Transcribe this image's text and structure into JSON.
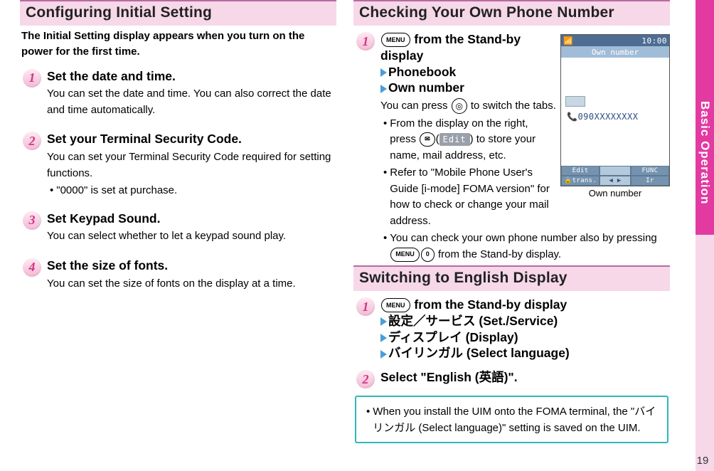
{
  "left": {
    "header": "Configuring Initial Setting",
    "intro": "The Initial Setting display appears when you turn on the power for the first time.",
    "steps": [
      {
        "num": "1",
        "title": "Set the date and time.",
        "text": "You can set the date and time. You can also correct the date and time automatically."
      },
      {
        "num": "2",
        "title": "Set your Terminal Security Code.",
        "text": "You can set your Terminal Security Code required for setting functions.",
        "bullet": "\"0000\" is set at purchase."
      },
      {
        "num": "3",
        "title": "Set Keypad Sound.",
        "text": "You can select whether to let a keypad sound play."
      },
      {
        "num": "4",
        "title": "Set the size of fonts.",
        "text": "You can set the size of fonts on the display at a time."
      }
    ]
  },
  "right": {
    "header1": "Checking Your Own Phone Number",
    "step1": {
      "num": "1",
      "menu": "MENU",
      "line1_a": " from the Stand-by display",
      "line1_b": "Phonebook",
      "line1_c": "Own number",
      "text1": "You can press ",
      "text1b": " to switch the tabs.",
      "bullet1_a": "From the display on the right, press ",
      "bullet1_mail": "✉",
      "bullet1_edit": "Edit",
      "bullet1_b": ") to store your name, mail address, etc.",
      "bullet2": "Refer to \"Mobile Phone User's Guide [i-mode] FOMA version\" for how to check or change your mail address.",
      "bullet3_a": "You can check your own phone number also by pressing ",
      "bullet3_key0": "0",
      "bullet3_b": " from the Stand-by display."
    },
    "phone": {
      "time": "10:00",
      "title": "Own number",
      "number": "📞090XXXXXXXX",
      "sk_edit": "Edit",
      "sk_func": "FUNC",
      "sk_trans": "🔒trans.",
      "sk_arrows": "◀  ▶",
      "sk_ir": "Ir",
      "caption": "Own number"
    },
    "header2": "Switching to English Display",
    "step2a": {
      "num": "1",
      "line1": " from the Stand-by display",
      "line2": "設定／サービス (Set./Service)",
      "line3": "ディスプレイ (Display)",
      "line4": "バイリンガル (Select language)"
    },
    "step2b": {
      "num": "2",
      "line": "Select \"English (英語)\"."
    },
    "note_bullet": "When you install the UIM onto the FOMA terminal, the \"バイリンガル (Select language)\" setting is saved on the UIM."
  },
  "sidebar_label": "Basic Operation",
  "page_number": "19",
  "colors": {
    "header_bg": "#f6d8e9",
    "header_border": "#b86aa2",
    "accent_pink": "#e33aa2",
    "arrow_blue": "#4a9ed8",
    "note_border": "#2fb6bd"
  }
}
